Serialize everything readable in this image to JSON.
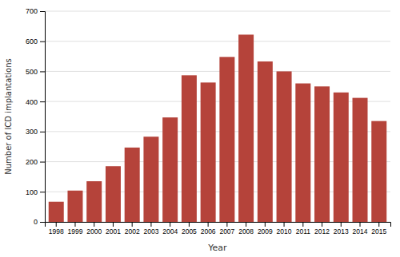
{
  "chart_data": {
    "type": "bar",
    "categories": [
      "1998",
      "1999",
      "2000",
      "2001",
      "2002",
      "2003",
      "2004",
      "2005",
      "2006",
      "2007",
      "2008",
      "2009",
      "2010",
      "2011",
      "2012",
      "2013",
      "2014",
      "2015"
    ],
    "values": [
      67,
      104,
      135,
      185,
      247,
      283,
      347,
      487,
      463,
      548,
      622,
      533,
      500,
      460,
      450,
      430,
      412,
      335
    ],
    "color": "#b5433a",
    "xlabel": "Year",
    "ylabel": "Number of ICD implantations",
    "ylim": [
      0,
      700
    ],
    "yticks": [
      0,
      100,
      200,
      300,
      400,
      500,
      600,
      700
    ],
    "grid": true
  }
}
